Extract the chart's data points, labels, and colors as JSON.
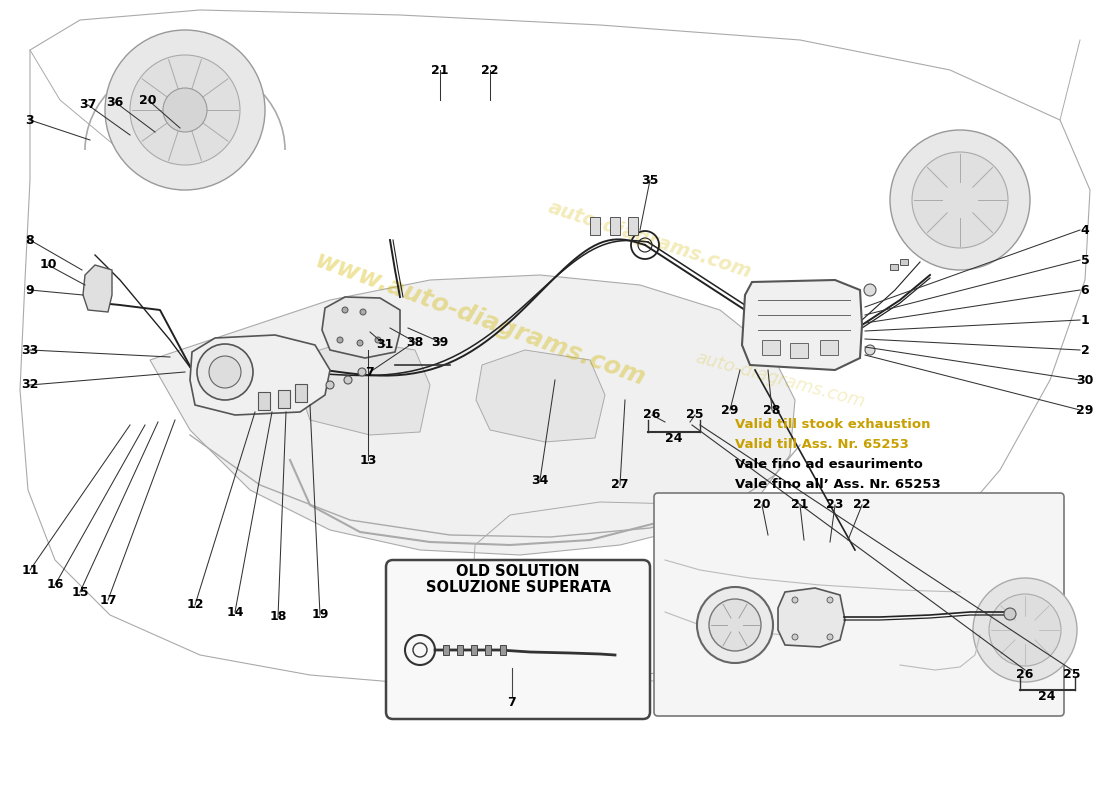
{
  "bg_color": "#ffffff",
  "car_color": "#cccccc",
  "line_color": "#333333",
  "note_lines": [
    "Vale fino all’ Ass. Nr. 65253",
    "Vale fino ad esaurimento",
    "Valid till Ass. Nr. 65253",
    "Valid till stook exhaustion"
  ],
  "note_colors": [
    "#000000",
    "#000000",
    "#c8a000",
    "#c8a000"
  ],
  "box_label_line1": "SOLUZIONE SUPERATA",
  "box_label_line2": "OLD SOLUTION",
  "watermark": "auto-diagrams.com",
  "watermark_color": "#d4b800"
}
